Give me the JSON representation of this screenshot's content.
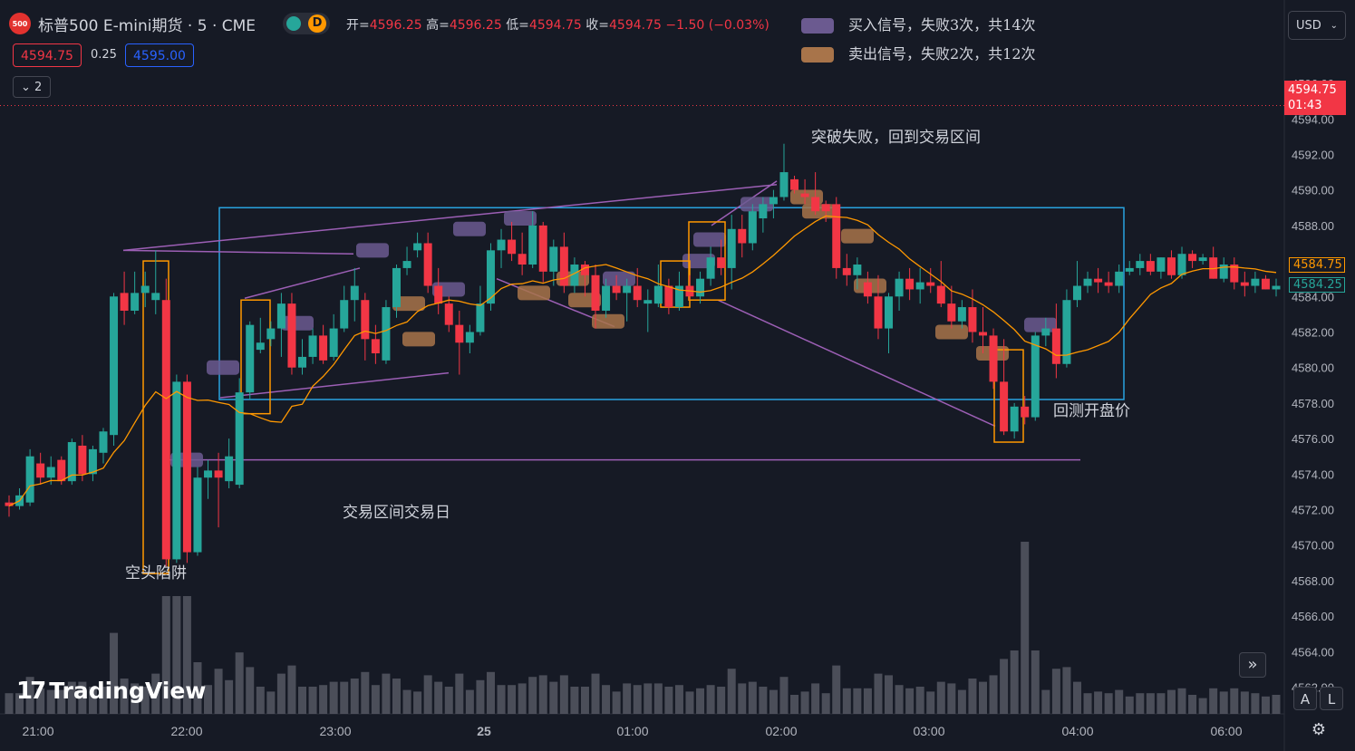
{
  "header": {
    "logo_text": "500",
    "title": "标普500 E-mini期货 · 5 · CME",
    "toggle_label": "D",
    "ohlc": {
      "open_label": "开=",
      "open": "4596.25",
      "high_label": "高=",
      "high": "4596.25",
      "low_label": "低=",
      "low": "4594.75",
      "close_label": "收=",
      "close": "4594.75",
      "change": "−1.50 (−0.03%)"
    },
    "bid": "4594.75",
    "spread": "0.25",
    "ask": "4595.00",
    "collapse_label": "2"
  },
  "legend": {
    "buy_label": "买入信号，失败3次，共14次",
    "buy_color": "#6b5a90",
    "sell_label": "卖出信号，失败2次，共12次",
    "sell_color": "#a8744a"
  },
  "currency": "USD",
  "branding": "TradingView",
  "controls": {
    "scroll_right_icon": "»",
    "auto_label": "A",
    "log_label": "L"
  },
  "price_tags": {
    "current_price": "4594.75",
    "countdown": "01:43",
    "ma_value": "4584.75",
    "ma_value2": "4584.25"
  },
  "chart_data": {
    "type": "candlestick",
    "y_ticks": [
      "4596.00",
      "4594.00",
      "4592.00",
      "4590.00",
      "4588.00",
      "4586.00",
      "4584.00",
      "4582.00",
      "4580.00",
      "4578.00",
      "4576.00",
      "4574.00",
      "4572.00",
      "4570.00",
      "4568.00",
      "4566.00",
      "4564.00",
      "4562.00"
    ],
    "y_range": [
      4560.6,
      4598.4
    ],
    "x_ticks": [
      "21:00",
      "22:00",
      "23:00",
      "25",
      "01:00",
      "02:00",
      "03:00",
      "04:00",
      "06:00"
    ],
    "annotations": [
      {
        "text": "空头陷阱"
      },
      {
        "text": "交易区间交易日"
      },
      {
        "text": "突破失败，回到交易区间"
      },
      {
        "text": "回测开盘价"
      }
    ],
    "candles": [
      [
        4572.4,
        4572.8,
        4571.6,
        4572.2
      ],
      [
        4572.2,
        4573.2,
        4572.0,
        4572.8
      ],
      [
        4572.4,
        4575.4,
        4572.2,
        4575.0
      ],
      [
        4574.6,
        4575.2,
        4573.4,
        4573.8
      ],
      [
        4573.8,
        4575.0,
        4573.4,
        4574.4
      ],
      [
        4574.8,
        4575.0,
        4573.4,
        4573.6
      ],
      [
        4573.6,
        4576.0,
        4573.4,
        4575.8
      ],
      [
        4575.6,
        4576.2,
        4573.6,
        4574.0
      ],
      [
        4574.0,
        4575.6,
        4573.6,
        4575.4
      ],
      [
        4575.2,
        4576.6,
        4574.6,
        4576.4
      ],
      [
        4576.2,
        4584.2,
        4575.6,
        4584.0
      ],
      [
        4584.2,
        4585.4,
        4582.4,
        4583.2
      ],
      [
        4583.2,
        4585.4,
        4583.0,
        4584.2
      ],
      [
        4584.2,
        4585.4,
        4583.4,
        4584.6
      ],
      [
        4583.8,
        4586.6,
        4583.0,
        4584.2
      ],
      [
        4583.8,
        4585.0,
        4568.8,
        4569.2
      ],
      [
        4569.2,
        4579.6,
        4569.0,
        4579.2
      ],
      [
        4579.2,
        4579.6,
        4569.0,
        4569.6
      ],
      [
        4569.6,
        4574.4,
        4569.4,
        4573.8
      ],
      [
        4573.8,
        4574.8,
        4572.6,
        4574.2
      ],
      [
        4574.2,
        4575.2,
        4571.0,
        4573.8
      ],
      [
        4573.6,
        4576.0,
        4573.2,
        4575.0
      ],
      [
        4573.4,
        4579.4,
        4573.2,
        4578.6
      ],
      [
        4578.6,
        4582.6,
        4578.2,
        4582.4
      ],
      [
        4581.0,
        4582.8,
        4580.8,
        4581.4
      ],
      [
        4581.6,
        4582.6,
        4581.2,
        4582.2
      ],
      [
        4582.2,
        4584.2,
        4580.6,
        4583.6
      ],
      [
        4583.6,
        4584.2,
        4579.6,
        4580.0
      ],
      [
        4580.0,
        4581.6,
        4579.6,
        4580.6
      ],
      [
        4580.6,
        4582.2,
        4580.2,
        4581.8
      ],
      [
        4581.8,
        4582.4,
        4580.2,
        4580.4
      ],
      [
        4580.6,
        4583.0,
        4580.4,
        4582.2
      ],
      [
        4582.2,
        4584.6,
        4582.0,
        4583.8
      ],
      [
        4583.8,
        4585.6,
        4582.6,
        4584.6
      ],
      [
        4583.8,
        4584.2,
        4580.4,
        4581.6
      ],
      [
        4581.6,
        4582.4,
        4580.2,
        4580.8
      ],
      [
        4580.4,
        4583.8,
        4580.2,
        4583.4
      ],
      [
        4583.4,
        4585.8,
        4582.8,
        4585.6
      ],
      [
        4585.6,
        4586.8,
        4585.2,
        4586.0
      ],
      [
        4586.6,
        4587.6,
        4586.2,
        4587.0
      ],
      [
        4587.0,
        4587.6,
        4584.2,
        4584.6
      ],
      [
        4584.6,
        4585.6,
        4583.0,
        4583.6
      ],
      [
        4583.6,
        4584.0,
        4582.0,
        4582.4
      ],
      [
        4582.4,
        4583.2,
        4579.6,
        4581.4
      ],
      [
        4581.4,
        4582.4,
        4580.8,
        4582.0
      ],
      [
        4582.0,
        4584.6,
        4581.8,
        4583.6
      ],
      [
        4583.6,
        4587.0,
        4583.2,
        4586.6
      ],
      [
        4586.6,
        4587.8,
        4585.6,
        4587.2
      ],
      [
        4587.2,
        4588.2,
        4586.0,
        4586.4
      ],
      [
        4586.4,
        4587.6,
        4585.2,
        4585.8
      ],
      [
        4585.8,
        4588.8,
        4585.6,
        4588.0
      ],
      [
        4588.0,
        4588.2,
        4584.8,
        4585.4
      ],
      [
        4585.4,
        4587.2,
        4584.6,
        4586.8
      ],
      [
        4586.8,
        4587.6,
        4584.2,
        4584.6
      ],
      [
        4584.6,
        4586.2,
        4584.2,
        4585.8
      ],
      [
        4585.8,
        4586.0,
        4584.0,
        4585.2
      ],
      [
        4585.2,
        4585.8,
        4582.2,
        4583.2
      ],
      [
        4583.2,
        4585.0,
        4582.8,
        4584.6
      ],
      [
        4584.6,
        4585.2,
        4583.8,
        4584.2
      ],
      [
        4584.2,
        4585.0,
        4582.6,
        4584.6
      ],
      [
        4584.6,
        4585.6,
        4583.4,
        4583.8
      ],
      [
        4583.6,
        4584.4,
        4582.0,
        4583.8
      ],
      [
        4583.6,
        4585.8,
        4583.4,
        4584.6
      ],
      [
        4584.6,
        4585.0,
        4583.0,
        4583.4
      ],
      [
        4583.4,
        4585.4,
        4583.2,
        4584.6
      ],
      [
        4584.6,
        4585.2,
        4583.8,
        4584.0
      ],
      [
        4584.0,
        4585.4,
        4583.6,
        4585.0
      ],
      [
        4585.0,
        4586.8,
        4584.6,
        4586.2
      ],
      [
        4586.2,
        4587.2,
        4585.2,
        4585.6
      ],
      [
        4585.6,
        4588.6,
        4584.4,
        4587.8
      ],
      [
        4587.8,
        4588.6,
        4586.2,
        4587.0
      ],
      [
        4587.0,
        4589.2,
        4586.6,
        4588.8
      ],
      [
        4588.4,
        4589.6,
        4587.6,
        4589.2
      ],
      [
        4589.2,
        4590.0,
        4588.4,
        4589.6
      ],
      [
        4589.6,
        4592.6,
        4589.4,
        4591.0
      ],
      [
        4590.6,
        4590.8,
        4589.8,
        4590.0
      ],
      [
        4589.8,
        4590.6,
        4589.2,
        4589.6
      ],
      [
        4589.6,
        4591.0,
        4588.6,
        4588.8
      ],
      [
        4589.2,
        4589.4,
        4588.2,
        4588.8
      ],
      [
        4589.2,
        4589.6,
        4585.0,
        4585.6
      ],
      [
        4585.6,
        4586.4,
        4584.6,
        4585.2
      ],
      [
        4585.2,
        4586.2,
        4584.4,
        4585.8
      ],
      [
        4584.8,
        4585.4,
        4583.6,
        4584.0
      ],
      [
        4584.0,
        4585.2,
        4581.6,
        4582.2
      ],
      [
        4582.2,
        4584.2,
        4580.8,
        4584.0
      ],
      [
        4584.0,
        4585.4,
        4583.2,
        4585.0
      ],
      [
        4585.0,
        4585.6,
        4583.8,
        4584.4
      ],
      [
        4584.4,
        4585.6,
        4583.6,
        4584.8
      ],
      [
        4584.8,
        4585.6,
        4584.2,
        4584.6
      ],
      [
        4584.6,
        4586.0,
        4583.4,
        4583.6
      ],
      [
        4583.6,
        4584.6,
        4582.2,
        4582.6
      ],
      [
        4582.6,
        4583.8,
        4582.2,
        4583.4
      ],
      [
        4583.4,
        4584.4,
        4581.4,
        4582.0
      ],
      [
        4582.0,
        4583.4,
        4580.8,
        4581.8
      ],
      [
        4581.8,
        4582.2,
        4578.8,
        4579.2
      ],
      [
        4579.2,
        4581.6,
        4576.2,
        4576.4
      ],
      [
        4576.4,
        4578.0,
        4576.0,
        4577.8
      ],
      [
        4577.8,
        4578.4,
        4576.8,
        4577.2
      ],
      [
        4577.2,
        4582.0,
        4577.0,
        4581.8
      ],
      [
        4581.8,
        4582.8,
        4581.2,
        4582.2
      ],
      [
        4582.2,
        4583.6,
        4579.4,
        4580.2
      ],
      [
        4580.2,
        4584.4,
        4580.0,
        4583.8
      ],
      [
        4583.8,
        4586.0,
        4583.4,
        4584.6
      ],
      [
        4584.6,
        4585.4,
        4584.2,
        4585.0
      ],
      [
        4585.0,
        4585.6,
        4584.2,
        4584.8
      ],
      [
        4584.8,
        4585.4,
        4584.2,
        4584.6
      ],
      [
        4584.6,
        4585.8,
        4584.2,
        4585.4
      ],
      [
        4585.4,
        4586.0,
        4585.2,
        4585.6
      ],
      [
        4585.6,
        4586.4,
        4585.2,
        4586.0
      ],
      [
        4586.0,
        4586.4,
        4585.2,
        4585.4
      ],
      [
        4585.4,
        4586.2,
        4585.0,
        4586.2
      ],
      [
        4586.2,
        4586.6,
        4585.0,
        4585.2
      ],
      [
        4585.2,
        4586.8,
        4585.0,
        4586.4
      ],
      [
        4586.4,
        4586.6,
        4585.6,
        4586.0
      ],
      [
        4586.0,
        4586.4,
        4585.8,
        4586.2
      ],
      [
        4586.2,
        4586.8,
        4585.0,
        4585.0
      ],
      [
        4585.0,
        4586.2,
        4584.8,
        4585.8
      ],
      [
        4585.8,
        4586.2,
        4584.4,
        4584.8
      ],
      [
        4584.8,
        4585.4,
        4584.0,
        4584.6
      ],
      [
        4584.6,
        4585.4,
        4584.2,
        4585.0
      ],
      [
        4585.0,
        4585.2,
        4584.4,
        4584.4
      ],
      [
        4584.4,
        4585.0,
        4584.0,
        4584.6
      ]
    ]
  }
}
